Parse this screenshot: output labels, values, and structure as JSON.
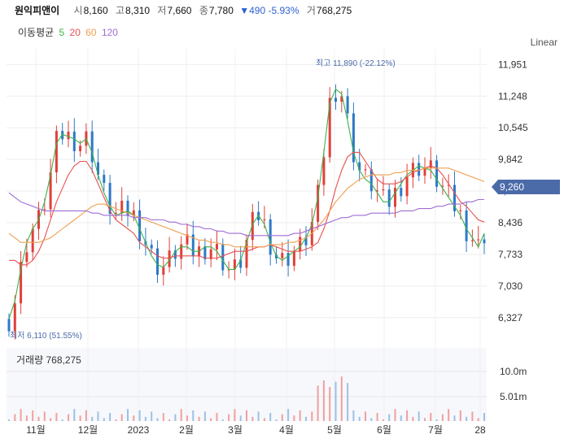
{
  "header": {
    "name": "원익피앤이",
    "open_label": "시",
    "open": "8,160",
    "high_label": "고",
    "high": "8,310",
    "low_label": "저",
    "low": "7,660",
    "close_label": "종",
    "close": "7,780",
    "change": "▼490 -5.93%",
    "volume_label": "거",
    "volume": "768,275"
  },
  "ma_legend": {
    "label": "이동평균",
    "items": [
      "5",
      "20",
      "60",
      "120"
    ]
  },
  "scale_toggle": "Linear",
  "colors": {
    "ma5": "#3cb34a",
    "ma20": "#e8504f",
    "ma60": "#f0a050",
    "ma120": "#a06cd5",
    "up": "#e0403b",
    "down": "#2d79c7",
    "badge": "#4a6aa8"
  },
  "chart_data": {
    "type": "candlestick",
    "price_axis": {
      "ticks": [
        "11,951",
        "11,248",
        "10,545",
        "9,842",
        "9,139",
        "8,436",
        "7,733",
        "7,030",
        "6,327"
      ],
      "ylim": [
        5800,
        12300
      ]
    },
    "x_axis": {
      "ticks": [
        "11월",
        "12월",
        "2023",
        "2월",
        "3월",
        "4월",
        "5월",
        "6월",
        "7월",
        "28"
      ]
    },
    "last_price": "9,260",
    "max_label": "최고 11,890 (-22.12%)",
    "min_label": "최저 6,110 (51.55%)",
    "series": [
      {
        "name": "5",
        "values": [
          6300,
          6700,
          7400,
          8000,
          8300,
          8500,
          8900,
          9500,
          10200,
          10400,
          10350,
          10300,
          10200,
          10300,
          10000,
          9500,
          9100,
          8800,
          8600,
          8650,
          8700,
          8600,
          8300,
          8000,
          7700,
          7500,
          7450,
          7600,
          7800,
          7900,
          7900,
          7800,
          7800,
          7900,
          7900,
          7800,
          7600,
          7400,
          7400,
          7600,
          8000,
          8400,
          8600,
          8400,
          8000,
          7700,
          7600,
          7700,
          7800,
          7900,
          8100,
          8400,
          9000,
          10000,
          11100,
          11400,
          11300,
          10700,
          10000,
          9600,
          9400,
          9300,
          9100,
          8900,
          8900,
          9100,
          9300,
          9500,
          9600,
          9700,
          9650,
          9600,
          9400,
          9200,
          9000,
          8800,
          8600,
          8300,
          8100,
          7900,
          8200
        ]
      },
      {
        "name": "20",
        "values": [
          7600,
          7600,
          7500,
          7500,
          7600,
          7800,
          8100,
          8500,
          8900,
          9200,
          9500,
          9700,
          9800,
          9800,
          9600,
          9300,
          9000,
          8700,
          8500,
          8400,
          8300,
          8200,
          8000,
          7900,
          7800,
          7700,
          7650,
          7650,
          7700,
          7700,
          7700,
          7700,
          7700,
          7650,
          7650,
          7650,
          7700,
          7750,
          7800,
          7800,
          7800,
          7850,
          7900,
          7900,
          7950,
          7900,
          7850,
          7800,
          7800,
          7800,
          7850,
          7900,
          8000,
          8300,
          8700,
          9200,
          9600,
          9900,
          10000,
          10000,
          9800,
          9600,
          9400,
          9300,
          9300,
          9300,
          9350,
          9450,
          9550,
          9600,
          9650,
          9700,
          9650,
          9500,
          9300,
          9100,
          8900,
          8800,
          8650,
          8500,
          8450
        ]
      },
      {
        "name": "60",
        "values": [
          8200,
          8100,
          8000,
          8000,
          8000,
          8000,
          8050,
          8100,
          8200,
          8300,
          8400,
          8500,
          8600,
          8700,
          8800,
          8850,
          8850,
          8800,
          8750,
          8700,
          8650,
          8600,
          8550,
          8500,
          8450,
          8400,
          8350,
          8300,
          8250,
          8200,
          8150,
          8100,
          8050,
          8050,
          8000,
          8000,
          7950,
          7950,
          7900,
          7900,
          7900,
          7900,
          7900,
          7900,
          7950,
          7950,
          7950,
          8000,
          8000,
          8050,
          8100,
          8200,
          8350,
          8500,
          8700,
          8900,
          9050,
          9200,
          9300,
          9400,
          9450,
          9500,
          9500,
          9500,
          9500,
          9550,
          9550,
          9600,
          9600,
          9600,
          9650,
          9650,
          9650,
          9650,
          9650,
          9600,
          9550,
          9500,
          9450,
          9400,
          9350
        ]
      },
      {
        "name": "120",
        "values": [
          9100,
          9000,
          8900,
          8850,
          8800,
          8750,
          8700,
          8700,
          8700,
          8700,
          8700,
          8700,
          8700,
          8700,
          8650,
          8650,
          8600,
          8600,
          8600,
          8600,
          8600,
          8550,
          8550,
          8550,
          8500,
          8500,
          8500,
          8450,
          8450,
          8400,
          8400,
          8350,
          8350,
          8300,
          8300,
          8250,
          8250,
          8200,
          8200,
          8200,
          8150,
          8150,
          8150,
          8150,
          8150,
          8150,
          8150,
          8150,
          8200,
          8200,
          8250,
          8300,
          8350,
          8400,
          8450,
          8500,
          8550,
          8550,
          8600,
          8600,
          8600,
          8650,
          8650,
          8650,
          8650,
          8650,
          8700,
          8700,
          8700,
          8750,
          8750,
          8750,
          8800,
          8800,
          8850,
          8850,
          8850,
          8900,
          8900,
          8950,
          8950
        ]
      }
    ],
    "volume_axis": {
      "ticks": [
        "10.0m",
        "5.01m"
      ]
    },
    "volume_label": "거래량",
    "volume_value": "768,275"
  }
}
